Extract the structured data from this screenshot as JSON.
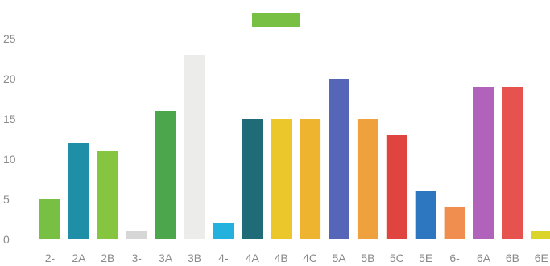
{
  "chart_data": {
    "type": "bar",
    "categories": [
      "2-",
      "2A",
      "2B",
      "3-",
      "3A",
      "3B",
      "4-",
      "4A",
      "4B",
      "4C",
      "5A",
      "5B",
      "5C",
      "5E",
      "6-",
      "6A",
      "6B",
      "6E"
    ],
    "values": [
      5,
      12,
      11,
      1,
      16,
      23,
      2,
      15,
      15,
      15,
      20,
      15,
      13,
      6,
      4,
      19,
      19,
      1
    ],
    "bar_colors": [
      "#77c043",
      "#1e8fa6",
      "#86c540",
      "#d6d6d6",
      "#4ca64c",
      "#ececea",
      "#25b1de",
      "#1f6b78",
      "#ebc72b",
      "#efb42f",
      "#5566b8",
      "#efa13e",
      "#e0443f",
      "#2d76c0",
      "#ef8e4f",
      "#b163bc",
      "#e6534e",
      "#dbd52a"
    ],
    "y_ticks": [
      0,
      5,
      10,
      15,
      20,
      25
    ],
    "ylim": [
      0,
      25
    ],
    "grid": false,
    "legend": {
      "position": "top-center",
      "entries": [
        {
          "name": "",
          "color": "#77c043"
        }
      ]
    },
    "title": "",
    "xlabel": "",
    "ylabel": ""
  }
}
